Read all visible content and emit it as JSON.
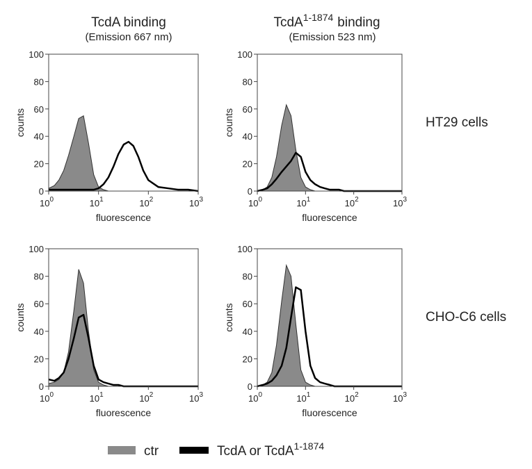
{
  "columns": [
    {
      "title": "TcdA binding",
      "subtitle": "(Emission 667 nm)"
    },
    {
      "title": "TcdA",
      "title_sup": "1-1874",
      "title_after": "binding",
      "subtitle": "(Emission 523 nm)"
    }
  ],
  "rows": [
    "HT29 cells",
    "CHO-C6 cells"
  ],
  "chart_data": [
    {
      "type": "area",
      "xscale": "log",
      "xlabel": "fluorescence",
      "ylabel": "counts",
      "x": [
        1,
        1.3,
        1.6,
        2,
        2.5,
        3.2,
        4,
        5,
        6.3,
        8,
        10,
        12.6,
        15.8,
        20,
        25,
        32,
        40,
        50,
        63,
        79,
        100,
        158,
        251,
        398,
        631,
        1000
      ],
      "xlim": [
        1,
        1000
      ],
      "ylim": [
        0,
        100
      ],
      "xticks": [
        {
          "value": 1,
          "label": "10",
          "exponent": "0"
        },
        {
          "value": 10,
          "label": "10",
          "exponent": "1"
        },
        {
          "value": 100,
          "label": "10",
          "exponent": "2"
        },
        {
          "value": 1000,
          "label": "10",
          "exponent": "3"
        }
      ],
      "yticks": [
        0,
        20,
        40,
        60,
        80,
        100
      ],
      "series": [
        {
          "name": "ctr",
          "color": "#8a8a8a",
          "values": [
            2,
            4,
            8,
            15,
            26,
            40,
            53,
            55,
            35,
            12,
            3,
            1,
            0,
            0,
            0,
            0,
            0,
            0,
            0,
            0,
            0,
            0,
            0,
            0,
            0,
            0
          ]
        },
        {
          "name": "TcdA or TcdA",
          "name_sup": "1-1874",
          "color": "#000000",
          "values": [
            1,
            1,
            1,
            1,
            1,
            1,
            1,
            1,
            1,
            1,
            2,
            5,
            10,
            18,
            27,
            34,
            36,
            33,
            25,
            15,
            8,
            3,
            2,
            1,
            1,
            0
          ]
        }
      ]
    },
    {
      "type": "area",
      "xscale": "log",
      "xlabel": "fluorescence",
      "ylabel": "counts",
      "x": [
        1,
        1.3,
        1.6,
        2,
        2.5,
        3.2,
        4,
        5,
        6.3,
        8,
        10,
        12.6,
        15.8,
        20,
        25,
        32,
        40,
        50,
        63,
        79,
        100,
        158,
        251,
        398,
        631,
        1000
      ],
      "xlim": [
        1,
        1000
      ],
      "ylim": [
        0,
        100
      ],
      "xticks": [
        {
          "value": 1,
          "label": "10",
          "exponent": "0"
        },
        {
          "value": 10,
          "label": "10",
          "exponent": "1"
        },
        {
          "value": 100,
          "label": "10",
          "exponent": "2"
        },
        {
          "value": 1000,
          "label": "10",
          "exponent": "3"
        }
      ],
      "yticks": [
        0,
        20,
        40,
        60,
        80,
        100
      ],
      "series": [
        {
          "color": "#8a8a8a",
          "values": [
            0,
            1,
            3,
            10,
            25,
            48,
            63,
            55,
            30,
            10,
            3,
            1,
            0,
            0,
            0,
            0,
            0,
            0,
            0,
            0,
            0,
            0,
            0,
            0,
            0,
            0
          ]
        },
        {
          "color": "#000000",
          "values": [
            0,
            1,
            2,
            5,
            9,
            14,
            18,
            22,
            28,
            25,
            14,
            8,
            5,
            3,
            2,
            1,
            1,
            1,
            0,
            0,
            0,
            0,
            0,
            0,
            0,
            0
          ]
        }
      ]
    },
    {
      "type": "area",
      "xscale": "log",
      "xlabel": "fluorescence",
      "ylabel": "counts",
      "x": [
        1,
        1.3,
        1.6,
        2,
        2.5,
        3.2,
        4,
        5,
        6.3,
        8,
        10,
        12.6,
        15.8,
        20,
        25,
        32,
        40,
        50,
        63,
        79,
        100,
        158,
        251,
        398,
        631,
        1000
      ],
      "xlim": [
        1,
        1000
      ],
      "ylim": [
        0,
        100
      ],
      "xticks": [
        {
          "value": 1,
          "label": "10",
          "exponent": "0"
        },
        {
          "value": 10,
          "label": "10",
          "exponent": "1"
        },
        {
          "value": 100,
          "label": "10",
          "exponent": "2"
        },
        {
          "value": 1000,
          "label": "10",
          "exponent": "3"
        }
      ],
      "yticks": [
        0,
        20,
        40,
        60,
        80,
        100
      ],
      "series": [
        {
          "color": "#8a8a8a",
          "values": [
            2,
            3,
            5,
            10,
            25,
            55,
            85,
            75,
            40,
            12,
            3,
            1,
            0,
            0,
            0,
            0,
            0,
            0,
            0,
            0,
            0,
            0,
            0,
            0,
            0,
            0
          ]
        },
        {
          "color": "#000000",
          "values": [
            5,
            4,
            6,
            10,
            20,
            35,
            50,
            52,
            35,
            15,
            5,
            3,
            2,
            1,
            1,
            0,
            0,
            0,
            0,
            0,
            0,
            0,
            0,
            0,
            0,
            0
          ]
        }
      ]
    },
    {
      "type": "area",
      "xscale": "log",
      "xlabel": "fluorescence",
      "ylabel": "counts",
      "x": [
        1,
        1.3,
        1.6,
        2,
        2.5,
        3.2,
        4,
        5,
        6.3,
        8,
        10,
        12.6,
        15.8,
        20,
        25,
        32,
        40,
        50,
        63,
        79,
        100,
        158,
        251,
        398,
        631,
        1000
      ],
      "xlim": [
        1,
        1000
      ],
      "ylim": [
        0,
        100
      ],
      "xticks": [
        {
          "value": 1,
          "label": "10",
          "exponent": "0"
        },
        {
          "value": 10,
          "label": "10",
          "exponent": "1"
        },
        {
          "value": 100,
          "label": "10",
          "exponent": "2"
        },
        {
          "value": 1000,
          "label": "10",
          "exponent": "3"
        }
      ],
      "yticks": [
        0,
        20,
        40,
        60,
        80,
        100
      ],
      "series": [
        {
          "color": "#8a8a8a",
          "values": [
            0,
            1,
            3,
            10,
            30,
            62,
            88,
            80,
            45,
            12,
            3,
            1,
            0,
            0,
            0,
            0,
            0,
            0,
            0,
            0,
            0,
            0,
            0,
            0,
            0,
            0
          ]
        },
        {
          "color": "#000000",
          "values": [
            0,
            1,
            2,
            4,
            8,
            15,
            28,
            50,
            72,
            70,
            40,
            15,
            6,
            3,
            2,
            1,
            0,
            0,
            0,
            0,
            0,
            0,
            0,
            0,
            0,
            0
          ]
        }
      ]
    }
  ]
}
